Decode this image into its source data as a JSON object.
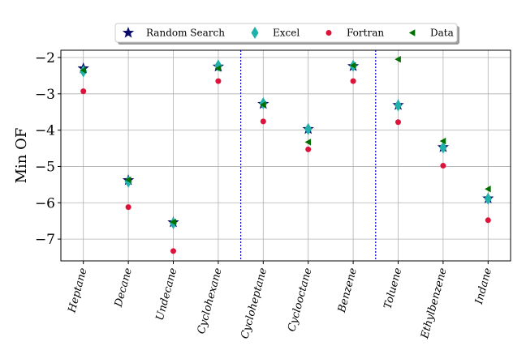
{
  "chart_data": {
    "type": "scatter",
    "title": "",
    "xlabel": "",
    "ylabel": "Min OF",
    "categories": [
      "Heptane",
      "Decane",
      "Undecane",
      "Cyclohexane",
      "Cycloheptane",
      "Cyclooctane",
      "Benzene",
      "Toluene",
      "Ethylbenzene",
      "Indane"
    ],
    "ylim": [
      -7.6,
      -1.8
    ],
    "yticks": [
      -2,
      -3,
      -4,
      -5,
      -6,
      -7
    ],
    "ytick_labels": [
      "−2",
      "−3",
      "−4",
      "−5",
      "−6",
      "−7"
    ],
    "grid": true,
    "legend_position": "top-center",
    "group_separators_after": [
      "Cyclohexane",
      "Benzene"
    ],
    "series": [
      {
        "name": "Random Search",
        "marker": "star",
        "color": "#0a0a6b",
        "values": [
          -2.3,
          -5.38,
          -6.54,
          -2.25,
          -3.28,
          -3.97,
          -2.24,
          -3.31,
          -4.47,
          -5.88
        ]
      },
      {
        "name": "Excel",
        "marker": "thin-diamond",
        "color": "#20b2aa",
        "values": [
          -2.38,
          -5.42,
          -6.56,
          -2.22,
          -3.26,
          -3.97,
          -2.23,
          -3.32,
          -4.48,
          -5.89
        ]
      },
      {
        "name": "Fortran",
        "marker": "circle",
        "color": "#dc143c",
        "values": [
          -2.93,
          -6.12,
          -7.33,
          -2.65,
          -3.76,
          -4.53,
          -2.65,
          -3.78,
          -4.98,
          -6.48
        ]
      },
      {
        "name": "Data",
        "marker": "triangle-left",
        "color": "#007000",
        "values": [
          -2.35,
          -5.37,
          -6.53,
          -2.3,
          -3.3,
          -4.33,
          -2.22,
          -2.05,
          -4.3,
          -5.62
        ]
      }
    ]
  }
}
